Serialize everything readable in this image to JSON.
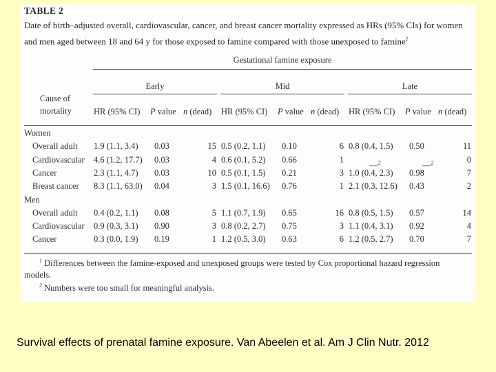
{
  "table": {
    "number": "TABLE 2",
    "caption_line1": "Date of birth–adjusted overall, cardiovascular, cancer, and breast cancer mortality expressed as HRs (95% CIs) for women",
    "caption_line2": "and men aged between 18 and 64 y for those exposed to famine compared with those unexposed to famine",
    "caption_sup": "1",
    "spanner": "Gestational famine exposure",
    "groups": [
      "Early",
      "Mid",
      "Late"
    ],
    "cause_label_1": "Cause of",
    "cause_label_2": "mortality",
    "col_hr": "HR (95% CI)",
    "col_p": "P",
    "col_p_suffix": "value",
    "col_n": "n",
    "col_n_suffix": "(dead)",
    "sections": [
      {
        "label": "Women",
        "rows": [
          {
            "cause": "Overall adult",
            "early": [
              "1.9 (1.1, 3.4)",
              "0.03",
              "15"
            ],
            "mid": [
              "0.5 (0.2, 1.1)",
              "0.10",
              "6"
            ],
            "late": [
              "0.8 (0.4, 1.5)",
              "0.50",
              "11"
            ]
          },
          {
            "cause": "Cardiovascular",
            "early": [
              "4.6 (1.2, 17.7)",
              "0.03",
              "4"
            ],
            "mid": [
              "0.6 (0.1, 5.2)",
              "0.66",
              "1"
            ],
            "late": [
              "—2",
              "—2",
              "0"
            ]
          },
          {
            "cause": "Cancer",
            "early": [
              "2.3 (1.1, 4.7)",
              "0.03",
              "10"
            ],
            "mid": [
              "0.5 (0.1, 1.5)",
              "0.21",
              "3"
            ],
            "late": [
              "1.0 (0.4, 2.3)",
              "0.98",
              "7"
            ]
          },
          {
            "cause": "Breast cancer",
            "early": [
              "8.3 (1.1, 63.0)",
              "0.04",
              "3"
            ],
            "mid": [
              "1.5 (0.1, 16.6)",
              "0.76",
              "1"
            ],
            "late": [
              "2.1 (0.3, 12.6)",
              "0.43",
              "2"
            ]
          }
        ]
      },
      {
        "label": "Men",
        "rows": [
          {
            "cause": "Overall adult",
            "early": [
              "0.4 (0.2, 1.1)",
              "0.08",
              "5"
            ],
            "mid": [
              "1.1 (0.7, 1.9)",
              "0.65",
              "16"
            ],
            "late": [
              "0.8 (0.5, 1.5)",
              "0.57",
              "14"
            ]
          },
          {
            "cause": "Cardiovascular",
            "early": [
              "0.9 (0.3, 3.1)",
              "0.90",
              "3"
            ],
            "mid": [
              "0.8 (0.2, 2.7)",
              "0.75",
              "3"
            ],
            "late": [
              "1.1 (0.4, 3.1)",
              "0.92",
              "4"
            ]
          },
          {
            "cause": "Cancer",
            "early": [
              "0.3 (0.0, 1.9)",
              "0.19",
              "1"
            ],
            "mid": [
              "1.2 (0.5, 3.0)",
              "0.63",
              "6"
            ],
            "late": [
              "1.2 (0.5, 2.7)",
              "0.70",
              "7"
            ]
          }
        ]
      }
    ],
    "footnote1_sup": "1",
    "footnote1_line1": "Differences between the famine-exposed and unexposed groups were tested by Cox proportional hazard regression",
    "footnote1_line2": "models.",
    "footnote2_sup": "2",
    "footnote2": "Numbers were too small for meaningful analysis."
  },
  "attribution": "Survival effects of prenatal famine exposure. Van Abeelen et al. Am J Clin Nutr. 2012"
}
